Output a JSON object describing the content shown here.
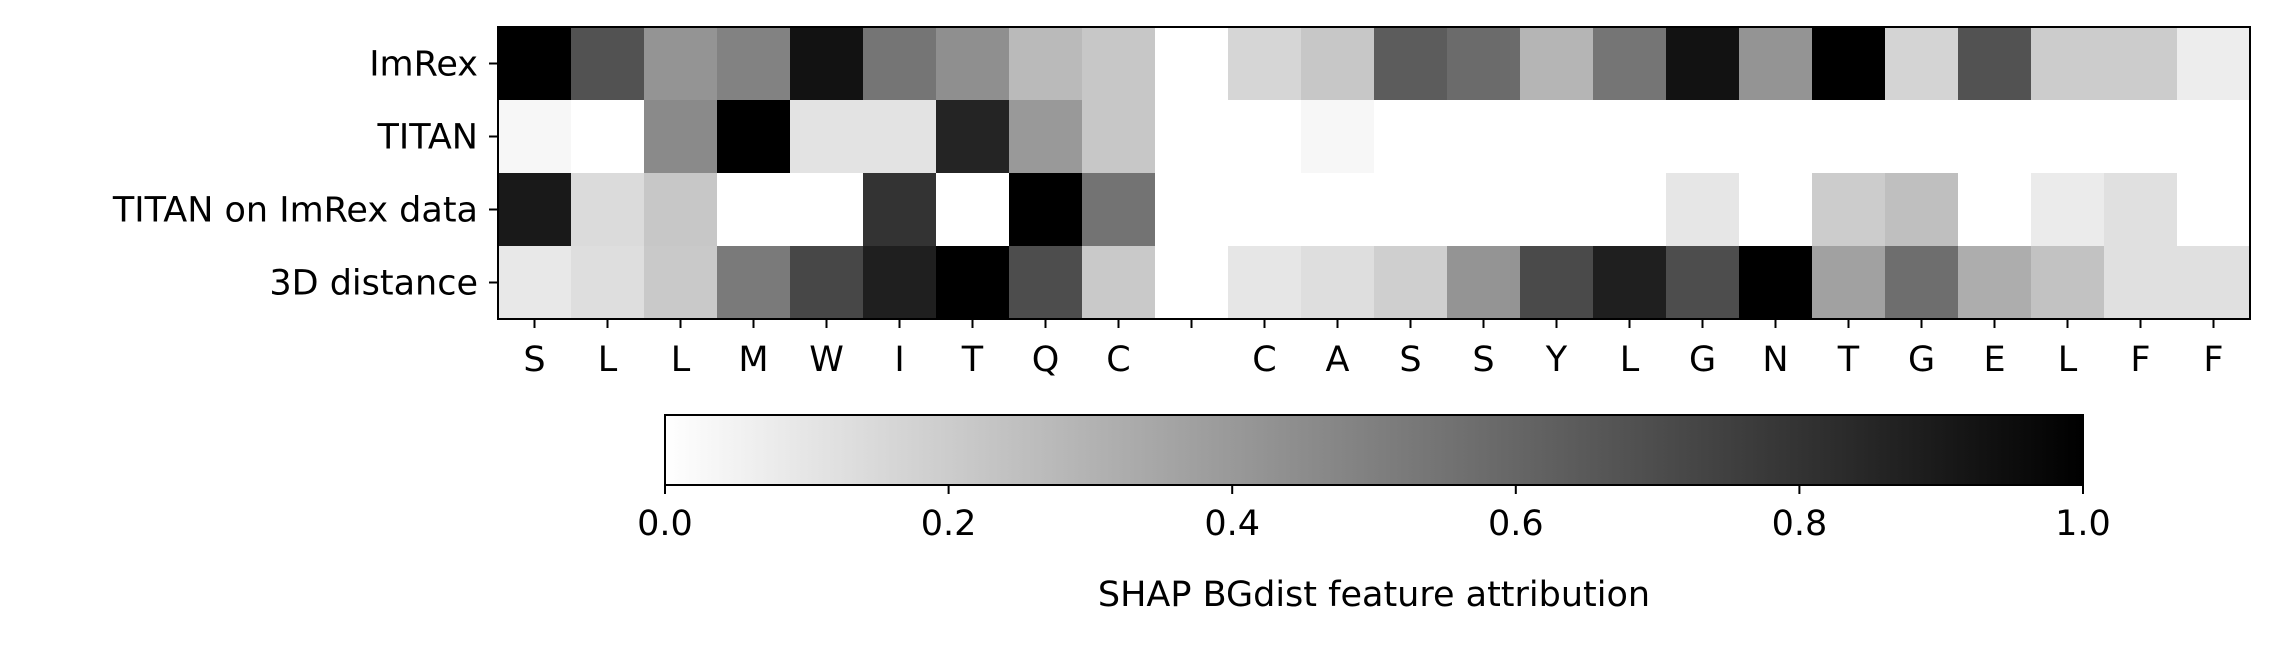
{
  "chart_data": {
    "type": "heatmap",
    "title": "",
    "rows": [
      "ImRex",
      "TITAN",
      "TITAN on ImRex data",
      "3D distance"
    ],
    "columns": [
      "S",
      "L",
      "L",
      "M",
      "W",
      "I",
      "T",
      "Q",
      "C",
      "",
      "C",
      "A",
      "S",
      "S",
      "Y",
      "L",
      "G",
      "N",
      "T",
      "G",
      "E",
      "L",
      "F",
      "F"
    ],
    "values": [
      [
        1.0,
        0.68,
        0.42,
        0.49,
        0.93,
        0.54,
        0.44,
        0.27,
        0.22,
        0.0,
        0.16,
        0.22,
        0.64,
        0.58,
        0.29,
        0.54,
        0.93,
        0.42,
        1.0,
        0.17,
        0.68,
        0.2,
        0.2,
        0.07
      ],
      [
        0.03,
        0.0,
        0.46,
        1.0,
        0.11,
        0.11,
        0.86,
        0.4,
        0.22,
        0.0,
        0.0,
        0.03,
        0.0,
        0.0,
        0.0,
        0.0,
        0.0,
        0.0,
        0.0,
        0.0,
        0.0,
        0.0,
        0.0,
        0.0
      ],
      [
        0.9,
        0.14,
        0.22,
        0.0,
        0.0,
        0.8,
        0.0,
        1.0,
        0.55,
        0.0,
        0.0,
        0.0,
        0.0,
        0.0,
        0.0,
        0.0,
        0.1,
        0.0,
        0.2,
        0.25,
        0.0,
        0.08,
        0.12,
        0.0
      ],
      [
        0.09,
        0.13,
        0.21,
        0.52,
        0.72,
        0.88,
        1.0,
        0.7,
        0.21,
        0.0,
        0.1,
        0.13,
        0.19,
        0.42,
        0.71,
        0.88,
        0.7,
        1.0,
        0.37,
        0.57,
        0.32,
        0.24,
        0.12,
        0.12
      ]
    ],
    "colorbar": {
      "label": "SHAP BGdist feature attribution",
      "range": [
        0.0,
        1.0
      ],
      "ticks": [
        "0.0",
        "0.2",
        "0.4",
        "0.6",
        "0.8",
        "1.0"
      ],
      "colormap": "greys",
      "low_color": "#ffffff",
      "high_color": "#000000"
    }
  }
}
